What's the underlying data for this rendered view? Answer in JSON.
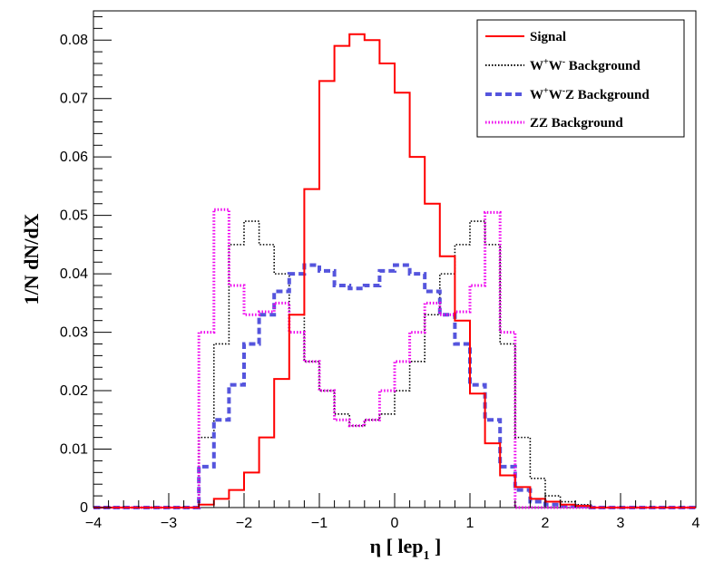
{
  "chart_data": {
    "type": "line",
    "drawstyle": "step",
    "xlabel": "η [ lep",
    "xlabel_sub": "1",
    "xlabel_end": " ]",
    "ylabel": "1/N dN/dX",
    "xlim": [
      -4,
      4
    ],
    "ylim": [
      0,
      0.085
    ],
    "xticks": [
      -4,
      -3,
      -2,
      -1,
      0,
      1,
      2,
      3,
      4
    ],
    "xtick_labels": [
      "−4",
      "−3",
      "−2",
      "−1",
      "0",
      "1",
      "2",
      "3",
      "4"
    ],
    "yticks": [
      0,
      0.01,
      0.02,
      0.03,
      0.04,
      0.05,
      0.06,
      0.07,
      0.08
    ],
    "ytick_labels": [
      "0",
      "0.01",
      "0.02",
      "0.03",
      "0.04",
      "0.05",
      "0.06",
      "0.07",
      "0.08"
    ],
    "bins": {
      "min": -2.6,
      "max": 2.6,
      "count": 26
    },
    "legend_position": "top-right",
    "series": [
      {
        "name": "Signal",
        "legend_label": "Signal",
        "color": "#ff0000",
        "style": "solid",
        "values": [
          0.0005,
          0.0015,
          0.003,
          0.006,
          0.012,
          0.022,
          0.033,
          0.0545,
          0.073,
          0.079,
          0.081,
          0.08,
          0.076,
          0.071,
          0.06,
          0.052,
          0.043,
          0.032,
          0.0195,
          0.011,
          0.0055,
          0.0035,
          0.0015,
          0.001,
          0.0005,
          0.0003
        ]
      },
      {
        "name": "W+W- Background",
        "legend_label": "W",
        "legend_sup1": "+",
        "legend_mid": "W",
        "legend_sup2": "-",
        "legend_tail": " Background",
        "color": "#000000",
        "style": "dotted",
        "values": [
          0.012,
          0.028,
          0.045,
          0.049,
          0.045,
          0.04,
          0.033,
          0.025,
          0.02,
          0.016,
          0.014,
          0.015,
          0.016,
          0.02,
          0.025,
          0.033,
          0.04,
          0.045,
          0.049,
          0.045,
          0.028,
          0.012,
          0.005,
          0.002,
          0.001,
          0.0005
        ]
      },
      {
        "name": "W+W-Z Background",
        "legend_label": "W",
        "legend_sup1": "+",
        "legend_mid": "W",
        "legend_sup2": "-",
        "legend_tail": "Z Background",
        "color": "#5555dd",
        "style": "dashed",
        "values": [
          0.007,
          0.015,
          0.021,
          0.028,
          0.033,
          0.037,
          0.04,
          0.0415,
          0.0405,
          0.038,
          0.0375,
          0.038,
          0.0405,
          0.0415,
          0.04,
          0.037,
          0.033,
          0.028,
          0.021,
          0.015,
          0.007,
          0.003,
          0.001,
          0.0005,
          0.0003,
          0.0002
        ]
      },
      {
        "name": "ZZ Background",
        "legend_label": "ZZ Background",
        "color": "#ee00ee",
        "style": "dotted",
        "values": [
          0.03,
          0.051,
          0.038,
          0.033,
          0.0335,
          0.035,
          0.03,
          0.025,
          0.02,
          0.015,
          0.014,
          0.015,
          0.02,
          0.025,
          0.03,
          0.035,
          0.033,
          0.0335,
          0.038,
          0.0505,
          0.03,
          0.0,
          0.0,
          0.0,
          0.0,
          0.0
        ]
      }
    ]
  }
}
